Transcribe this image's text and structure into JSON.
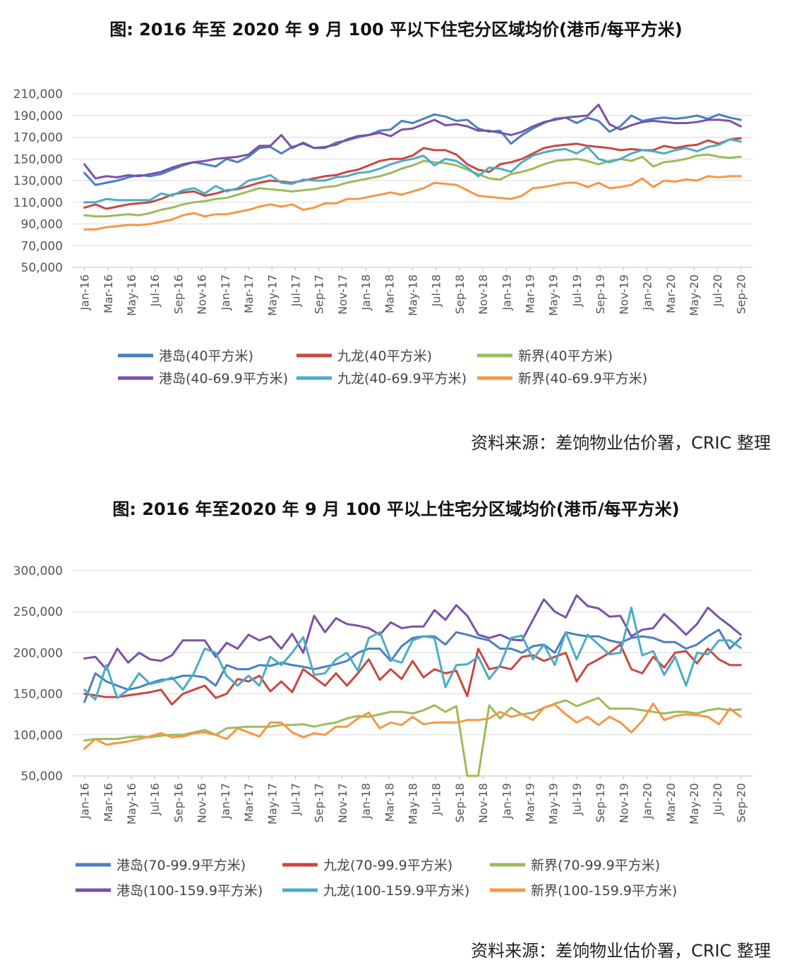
{
  "charts": [
    {
      "title": "图: 2016 年至 2020 年 9 月 100 平以下住宅分区域均价(港币/每平方米)",
      "source": "资料来源：差饷物业估价署，CRIC 整理"
    },
    {
      "title": "图: 2016 年至2020 年 9 月 100 平以上住宅分区域均价(港币/每平方米)",
      "source": "资料来源：差饷物业估价署，CRIC 整理"
    }
  ],
  "chart_data": [
    {
      "type": "line",
      "x_tick_labels": [
        "Jan-16",
        "Mar-16",
        "May-16",
        "Jul-16",
        "Sep-16",
        "Nov-16",
        "Jan-17",
        "Mar-17",
        "May-17",
        "Jul-17",
        "Sep-17",
        "Nov-17",
        "Jan-18",
        "Mar-18",
        "May-18",
        "Jul-18",
        "Sep-18",
        "Nov-18",
        "Jan-19",
        "Mar-19",
        "May-19",
        "Jul-19",
        "Sep-19",
        "Nov-19",
        "Jan-20",
        "Mar-20",
        "May-20",
        "Jul-20",
        "Sep-20"
      ],
      "ylim": [
        50000,
        210000
      ],
      "yticks": [
        50000,
        70000,
        90000,
        110000,
        130000,
        150000,
        170000,
        190000,
        210000
      ],
      "ytick_labels": [
        "50,000",
        "70,000",
        "90,000",
        "110,000",
        "130,000",
        "150,000",
        "170,000",
        "190,000",
        "210,000"
      ],
      "grid": true,
      "legend_position": "bottom",
      "series": [
        {
          "name": "港岛(40平方米)",
          "color": "#4a7fc1",
          "values": [
            137000,
            126000,
            128000,
            130000,
            133000,
            135000,
            134000,
            136000,
            140000,
            144000,
            147000,
            145000,
            143000,
            150000,
            147000,
            152000,
            160000,
            161000,
            155000,
            161000,
            164000,
            160000,
            160000,
            165000,
            167000,
            170000,
            172000,
            176000,
            177000,
            185000,
            183000,
            187000,
            191000,
            189000,
            185000,
            186000,
            178000,
            175000,
            176000,
            164000,
            172000,
            178000,
            183000,
            187000,
            188000,
            183000,
            188000,
            185000,
            175000,
            180000,
            190000,
            185000,
            187000,
            188000,
            187000,
            188000,
            190000,
            187000,
            191000,
            188000,
            186000
          ]
        },
        {
          "name": "九龙(40平方米)",
          "color": "#c9483f",
          "values": [
            105000,
            108000,
            104000,
            106000,
            108000,
            109000,
            110000,
            113000,
            117000,
            119000,
            120000,
            116000,
            118000,
            121000,
            122000,
            125000,
            128000,
            130000,
            129000,
            128000,
            130000,
            132000,
            134000,
            135000,
            138000,
            140000,
            144000,
            148000,
            150000,
            150000,
            153000,
            160000,
            158000,
            158000,
            154000,
            145000,
            140000,
            138000,
            145000,
            147000,
            150000,
            155000,
            160000,
            162000,
            163000,
            164000,
            162000,
            161000,
            160000,
            158000,
            159000,
            158000,
            158000,
            162000,
            160000,
            162000,
            163000,
            167000,
            164000,
            168000,
            169000
          ]
        },
        {
          "name": "新界(40平方米)",
          "color": "#9bbb59",
          "values": [
            98000,
            97000,
            97000,
            98000,
            99000,
            98000,
            100000,
            103000,
            105000,
            108000,
            110000,
            111000,
            113000,
            114000,
            117000,
            120000,
            123000,
            122000,
            121000,
            120000,
            121000,
            122000,
            124000,
            125000,
            128000,
            130000,
            132000,
            134000,
            137000,
            141000,
            144000,
            148000,
            147000,
            146000,
            144000,
            140000,
            136000,
            132000,
            131000,
            136000,
            138000,
            141000,
            145000,
            148000,
            149000,
            150000,
            148000,
            145000,
            148000,
            150000,
            148000,
            152000,
            143000,
            147000,
            148000,
            150000,
            153000,
            154000,
            152000,
            151000,
            152000
          ]
        },
        {
          "name": "港岛(40-69.9平方米)",
          "color": "#7a52a8",
          "values": [
            145000,
            132000,
            134000,
            133000,
            135000,
            134000,
            136000,
            138000,
            142000,
            145000,
            147000,
            148000,
            150000,
            151000,
            152000,
            154000,
            162000,
            162000,
            172000,
            160000,
            165000,
            160000,
            161000,
            163000,
            168000,
            171000,
            172000,
            174000,
            171000,
            177000,
            178000,
            182000,
            186000,
            181000,
            182000,
            180000,
            176000,
            176000,
            174000,
            172000,
            175000,
            180000,
            184000,
            186000,
            188000,
            189000,
            190000,
            200000,
            182000,
            177000,
            181000,
            184000,
            185000,
            184000,
            183000,
            183000,
            184000,
            186000,
            186000,
            185000,
            180000
          ]
        },
        {
          "name": "九龙(40-69.9平方米)",
          "color": "#4bacc6",
          "values": [
            110000,
            110000,
            113000,
            112000,
            112000,
            112000,
            112000,
            118000,
            116000,
            121000,
            123000,
            118000,
            125000,
            120000,
            123000,
            130000,
            132000,
            135000,
            128000,
            127000,
            131000,
            130000,
            130000,
            133000,
            134000,
            137000,
            138000,
            141000,
            145000,
            148000,
            150000,
            153000,
            144000,
            150000,
            148000,
            142000,
            134000,
            142000,
            141000,
            138000,
            147000,
            153000,
            156000,
            158000,
            159000,
            155000,
            161000,
            150000,
            147000,
            150000,
            155000,
            158000,
            157000,
            155000,
            158000,
            160000,
            157000,
            161000,
            163000,
            168000,
            166000
          ]
        },
        {
          "name": "新界(40-69.9平方米)",
          "color": "#f79646",
          "values": [
            85000,
            85000,
            87000,
            88000,
            89000,
            89000,
            90000,
            92000,
            94000,
            98000,
            100000,
            97000,
            99000,
            99000,
            101000,
            103000,
            106000,
            108000,
            106000,
            108000,
            103000,
            105000,
            109000,
            109000,
            113000,
            113000,
            115000,
            117000,
            119000,
            117000,
            120000,
            123000,
            128000,
            127000,
            126000,
            121000,
            116000,
            115000,
            114000,
            113000,
            116000,
            123000,
            124000,
            126000,
            128000,
            128000,
            124000,
            128000,
            123000,
            124000,
            126000,
            132000,
            124000,
            130000,
            129000,
            131000,
            130000,
            134000,
            133000,
            134000,
            134000
          ]
        }
      ]
    },
    {
      "type": "line",
      "x_tick_labels": [
        "Jan-16",
        "Mar-16",
        "May-16",
        "Jul-16",
        "Sep-16",
        "Nov-16",
        "Jan-17",
        "Mar-17",
        "May-17",
        "Jul-17",
        "Sep-17",
        "Nov-17",
        "Jan-18",
        "Mar-18",
        "May-18",
        "Jul-18",
        "Sep-18",
        "Nov-18",
        "Jan-19",
        "Mar-19",
        "May-19",
        "Jul-19",
        "Sep-19",
        "Nov-19",
        "Jan-20",
        "Mar-20",
        "May-20",
        "Jul-20",
        "Sep-20"
      ],
      "ylim": [
        50000,
        300000
      ],
      "yticks": [
        50000,
        100000,
        150000,
        200000,
        250000,
        300000
      ],
      "ytick_labels": [
        "50,000",
        "100,000",
        "150,000",
        "200,000",
        "250,000",
        "300,000"
      ],
      "grid": true,
      "legend_position": "bottom",
      "series": [
        {
          "name": "港岛(70-99.9平方米)",
          "color": "#4a7fc1",
          "values": [
            140000,
            175000,
            165000,
            160000,
            155000,
            158000,
            163000,
            167000,
            168000,
            172000,
            172000,
            170000,
            160000,
            185000,
            180000,
            180000,
            185000,
            184000,
            188000,
            185000,
            183000,
            180000,
            183000,
            186000,
            190000,
            200000,
            205000,
            205000,
            190000,
            208000,
            218000,
            220000,
            220000,
            210000,
            225000,
            222000,
            218000,
            215000,
            205000,
            205000,
            200000,
            208000,
            210000,
            200000,
            225000,
            222000,
            220000,
            220000,
            215000,
            212000,
            218000,
            220000,
            218000,
            213000,
            213000,
            205000,
            210000,
            220000,
            228000,
            205000,
            218000
          ]
        },
        {
          "name": "九龙(70-99.9平方米)",
          "color": "#c9483f",
          "values": [
            150000,
            148000,
            146000,
            146000,
            148000,
            150000,
            152000,
            155000,
            137000,
            150000,
            155000,
            160000,
            145000,
            150000,
            168000,
            165000,
            172000,
            153000,
            165000,
            152000,
            180000,
            170000,
            160000,
            175000,
            160000,
            175000,
            192000,
            167000,
            180000,
            168000,
            190000,
            170000,
            180000,
            175000,
            178000,
            147000,
            205000,
            180000,
            183000,
            180000,
            195000,
            197000,
            190000,
            195000,
            200000,
            165000,
            185000,
            192000,
            200000,
            210000,
            180000,
            175000,
            195000,
            182000,
            200000,
            202000,
            187000,
            205000,
            192000,
            185000,
            185000
          ]
        },
        {
          "name": "新界(70-99.9平方米)",
          "color": "#9bbb59",
          "values": [
            93000,
            95000,
            95000,
            95000,
            97000,
            98000,
            97000,
            99000,
            100000,
            100000,
            103000,
            106000,
            100000,
            108000,
            109000,
            110000,
            110000,
            110000,
            112000,
            112000,
            113000,
            110000,
            113000,
            115000,
            120000,
            123000,
            122000,
            125000,
            128000,
            128000,
            126000,
            130000,
            136000,
            128000,
            135000,
            50000,
            50000,
            136000,
            120000,
            133000,
            125000,
            127000,
            133000,
            138000,
            142000,
            135000,
            140000,
            145000,
            132000,
            132000,
            132000,
            130000,
            128000,
            126000,
            128000,
            128000,
            126000,
            130000,
            132000,
            130000,
            131000
          ]
        },
        {
          "name": "港岛(100-159.9平方米)",
          "color": "#7a52a8",
          "values": [
            193000,
            195000,
            180000,
            205000,
            188000,
            200000,
            192000,
            190000,
            197000,
            215000,
            215000,
            215000,
            195000,
            212000,
            205000,
            222000,
            215000,
            220000,
            205000,
            223000,
            200000,
            245000,
            225000,
            242000,
            235000,
            233000,
            230000,
            222000,
            237000,
            230000,
            232000,
            232000,
            252000,
            240000,
            258000,
            245000,
            222000,
            218000,
            222000,
            216000,
            215000,
            240000,
            265000,
            250000,
            243000,
            270000,
            257000,
            254000,
            244000,
            245000,
            220000,
            228000,
            230000,
            247000,
            235000,
            222000,
            235000,
            255000,
            243000,
            233000,
            222000
          ]
        },
        {
          "name": "九龙(100-159.9平方米)",
          "color": "#4bacc6",
          "values": [
            155000,
            143000,
            185000,
            145000,
            155000,
            175000,
            162000,
            165000,
            170000,
            155000,
            175000,
            205000,
            200000,
            172000,
            160000,
            172000,
            160000,
            195000,
            185000,
            200000,
            219000,
            173000,
            175000,
            192000,
            200000,
            178000,
            218000,
            225000,
            192000,
            188000,
            215000,
            220000,
            218000,
            158000,
            185000,
            186000,
            195000,
            168000,
            185000,
            218000,
            221000,
            192000,
            210000,
            185000,
            225000,
            192000,
            222000,
            210000,
            198000,
            200000,
            255000,
            197000,
            202000,
            173000,
            195000,
            160000,
            200000,
            198000,
            215000,
            215000,
            206000
          ]
        },
        {
          "name": "新界(100-159.9平方米)",
          "color": "#f79646",
          "values": [
            83000,
            95000,
            88000,
            90000,
            92000,
            95000,
            98000,
            102000,
            97000,
            98000,
            102000,
            103000,
            100000,
            95000,
            108000,
            103000,
            98000,
            115000,
            115000,
            103000,
            97000,
            102000,
            100000,
            110000,
            110000,
            120000,
            127000,
            108000,
            115000,
            112000,
            122000,
            113000,
            115000,
            115000,
            115000,
            118000,
            118000,
            120000,
            128000,
            122000,
            125000,
            118000,
            133000,
            137000,
            125000,
            115000,
            122000,
            112000,
            122000,
            115000,
            103000,
            117000,
            138000,
            118000,
            123000,
            125000,
            124000,
            122000,
            113000,
            132000,
            122000
          ]
        }
      ]
    }
  ]
}
